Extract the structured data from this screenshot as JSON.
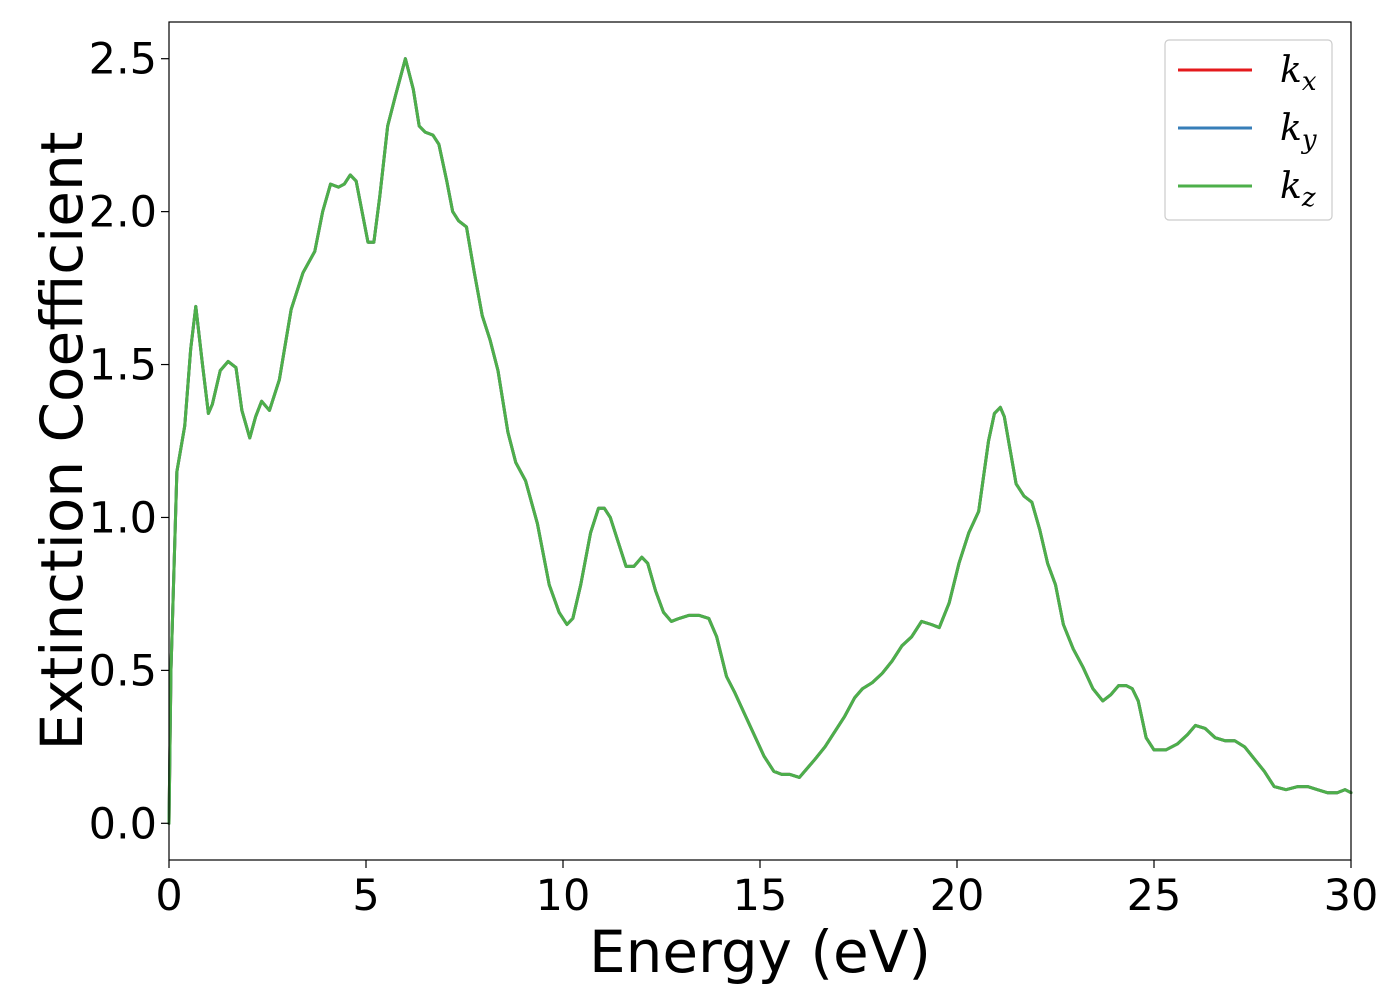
{
  "chart_data": {
    "type": "line",
    "title": "",
    "xlabel": "Energy (eV)",
    "ylabel": "Extinction Coefficient",
    "xlim": [
      0,
      30
    ],
    "ylim": [
      -0.12,
      2.62
    ],
    "xticks": [
      0,
      5,
      10,
      15,
      20,
      25,
      30
    ],
    "xtick_labels": [
      "0",
      "5",
      "10",
      "15",
      "20",
      "25",
      "30"
    ],
    "yticks": [
      0.0,
      0.5,
      1.0,
      1.5,
      2.0,
      2.5
    ],
    "ytick_labels": [
      "0.0",
      "0.5",
      "1.0",
      "1.5",
      "2.0",
      "2.5"
    ],
    "grid": false,
    "legend_position": "top-right",
    "x": [
      0,
      0.05,
      0.2,
      0.4,
      0.55,
      0.68,
      0.85,
      1.0,
      1.1,
      1.3,
      1.5,
      1.7,
      1.85,
      2.05,
      2.2,
      2.35,
      2.55,
      2.8,
      3.1,
      3.4,
      3.7,
      3.9,
      4.1,
      4.3,
      4.45,
      4.6,
      4.75,
      4.9,
      5.05,
      5.2,
      5.35,
      5.55,
      5.75,
      6.0,
      6.2,
      6.35,
      6.5,
      6.7,
      6.85,
      7.05,
      7.2,
      7.35,
      7.55,
      7.75,
      7.95,
      8.15,
      8.35,
      8.6,
      8.8,
      9.05,
      9.35,
      9.65,
      9.9,
      10.1,
      10.25,
      10.45,
      10.7,
      10.9,
      11.05,
      11.2,
      11.4,
      11.6,
      11.8,
      12.0,
      12.15,
      12.35,
      12.55,
      12.75,
      12.95,
      13.2,
      13.45,
      13.7,
      13.9,
      14.15,
      14.35,
      14.6,
      14.85,
      15.1,
      15.35,
      15.55,
      15.75,
      16.0,
      16.2,
      16.4,
      16.65,
      16.9,
      17.15,
      17.4,
      17.6,
      17.85,
      18.1,
      18.35,
      18.6,
      18.85,
      19.1,
      19.35,
      19.55,
      19.8,
      20.05,
      20.3,
      20.55,
      20.8,
      20.95,
      21.1,
      21.2,
      21.35,
      21.5,
      21.7,
      21.9,
      22.1,
      22.3,
      22.5,
      22.7,
      22.95,
      23.2,
      23.45,
      23.7,
      23.9,
      24.1,
      24.3,
      24.45,
      24.6,
      24.8,
      25.0,
      25.3,
      25.6,
      25.85,
      26.05,
      26.3,
      26.55,
      26.8,
      27.05,
      27.3,
      27.55,
      27.8,
      28.05,
      28.35,
      28.65,
      28.9,
      29.15,
      29.4,
      29.65,
      29.85,
      30.0
    ],
    "series": [
      {
        "name": "k_x",
        "color": "#e41a1c",
        "values": [
          0.0,
          0.5,
          1.15,
          1.3,
          1.55,
          1.69,
          1.5,
          1.34,
          1.37,
          1.48,
          1.51,
          1.49,
          1.35,
          1.26,
          1.33,
          1.38,
          1.35,
          1.45,
          1.68,
          1.8,
          1.87,
          2.0,
          2.09,
          2.08,
          2.09,
          2.12,
          2.1,
          2.0,
          1.9,
          1.9,
          2.05,
          2.28,
          2.38,
          2.5,
          2.4,
          2.28,
          2.26,
          2.25,
          2.22,
          2.1,
          2.0,
          1.97,
          1.95,
          1.8,
          1.66,
          1.58,
          1.48,
          1.28,
          1.18,
          1.12,
          0.98,
          0.78,
          0.69,
          0.65,
          0.67,
          0.78,
          0.95,
          1.03,
          1.03,
          1.0,
          0.92,
          0.84,
          0.84,
          0.87,
          0.85,
          0.76,
          0.69,
          0.66,
          0.67,
          0.68,
          0.68,
          0.67,
          0.61,
          0.48,
          0.43,
          0.36,
          0.29,
          0.22,
          0.17,
          0.16,
          0.16,
          0.15,
          0.18,
          0.21,
          0.25,
          0.3,
          0.35,
          0.41,
          0.44,
          0.46,
          0.49,
          0.53,
          0.58,
          0.61,
          0.66,
          0.65,
          0.64,
          0.72,
          0.85,
          0.95,
          1.02,
          1.25,
          1.34,
          1.36,
          1.33,
          1.22,
          1.11,
          1.07,
          1.05,
          0.96,
          0.85,
          0.78,
          0.65,
          0.57,
          0.51,
          0.44,
          0.4,
          0.42,
          0.45,
          0.45,
          0.44,
          0.4,
          0.28,
          0.24,
          0.24,
          0.26,
          0.29,
          0.32,
          0.31,
          0.28,
          0.27,
          0.27,
          0.25,
          0.21,
          0.17,
          0.12,
          0.11,
          0.12,
          0.12,
          0.11,
          0.1,
          0.1,
          0.11,
          0.1
        ]
      },
      {
        "name": "k_y",
        "color": "#377eb8",
        "values": [
          0.0,
          0.5,
          1.15,
          1.3,
          1.55,
          1.69,
          1.5,
          1.34,
          1.37,
          1.48,
          1.51,
          1.49,
          1.35,
          1.26,
          1.33,
          1.38,
          1.35,
          1.45,
          1.68,
          1.8,
          1.87,
          2.0,
          2.09,
          2.08,
          2.09,
          2.12,
          2.1,
          2.0,
          1.9,
          1.9,
          2.05,
          2.28,
          2.38,
          2.5,
          2.4,
          2.28,
          2.26,
          2.25,
          2.22,
          2.1,
          2.0,
          1.97,
          1.95,
          1.8,
          1.66,
          1.58,
          1.48,
          1.28,
          1.18,
          1.12,
          0.98,
          0.78,
          0.69,
          0.65,
          0.67,
          0.78,
          0.95,
          1.03,
          1.03,
          1.0,
          0.92,
          0.84,
          0.84,
          0.87,
          0.85,
          0.76,
          0.69,
          0.66,
          0.67,
          0.68,
          0.68,
          0.67,
          0.61,
          0.48,
          0.43,
          0.36,
          0.29,
          0.22,
          0.17,
          0.16,
          0.16,
          0.15,
          0.18,
          0.21,
          0.25,
          0.3,
          0.35,
          0.41,
          0.44,
          0.46,
          0.49,
          0.53,
          0.58,
          0.61,
          0.66,
          0.65,
          0.64,
          0.72,
          0.85,
          0.95,
          1.02,
          1.25,
          1.34,
          1.36,
          1.33,
          1.22,
          1.11,
          1.07,
          1.05,
          0.96,
          0.85,
          0.78,
          0.65,
          0.57,
          0.51,
          0.44,
          0.4,
          0.42,
          0.45,
          0.45,
          0.44,
          0.4,
          0.28,
          0.24,
          0.24,
          0.26,
          0.29,
          0.32,
          0.31,
          0.28,
          0.27,
          0.27,
          0.25,
          0.21,
          0.17,
          0.12,
          0.11,
          0.12,
          0.12,
          0.11,
          0.1,
          0.1,
          0.11,
          0.1
        ]
      },
      {
        "name": "k_z",
        "color": "#4daf4a",
        "values": [
          0.0,
          0.5,
          1.15,
          1.3,
          1.55,
          1.69,
          1.5,
          1.34,
          1.37,
          1.48,
          1.51,
          1.49,
          1.35,
          1.26,
          1.33,
          1.38,
          1.35,
          1.45,
          1.68,
          1.8,
          1.87,
          2.0,
          2.09,
          2.08,
          2.09,
          2.12,
          2.1,
          2.0,
          1.9,
          1.9,
          2.05,
          2.28,
          2.38,
          2.5,
          2.4,
          2.28,
          2.26,
          2.25,
          2.22,
          2.1,
          2.0,
          1.97,
          1.95,
          1.8,
          1.66,
          1.58,
          1.48,
          1.28,
          1.18,
          1.12,
          0.98,
          0.78,
          0.69,
          0.65,
          0.67,
          0.78,
          0.95,
          1.03,
          1.03,
          1.0,
          0.92,
          0.84,
          0.84,
          0.87,
          0.85,
          0.76,
          0.69,
          0.66,
          0.67,
          0.68,
          0.68,
          0.67,
          0.61,
          0.48,
          0.43,
          0.36,
          0.29,
          0.22,
          0.17,
          0.16,
          0.16,
          0.15,
          0.18,
          0.21,
          0.25,
          0.3,
          0.35,
          0.41,
          0.44,
          0.46,
          0.49,
          0.53,
          0.58,
          0.61,
          0.66,
          0.65,
          0.64,
          0.72,
          0.85,
          0.95,
          1.02,
          1.25,
          1.34,
          1.36,
          1.33,
          1.22,
          1.11,
          1.07,
          1.05,
          0.96,
          0.85,
          0.78,
          0.65,
          0.57,
          0.51,
          0.44,
          0.4,
          0.42,
          0.45,
          0.45,
          0.44,
          0.4,
          0.28,
          0.24,
          0.24,
          0.26,
          0.29,
          0.32,
          0.31,
          0.28,
          0.27,
          0.27,
          0.25,
          0.21,
          0.17,
          0.12,
          0.11,
          0.12,
          0.12,
          0.11,
          0.1,
          0.1,
          0.11,
          0.1
        ]
      }
    ],
    "legend": [
      {
        "base": "k",
        "sub": "x",
        "color": "#e41a1c"
      },
      {
        "base": "k",
        "sub": "y",
        "color": "#377eb8"
      },
      {
        "base": "k",
        "sub": "z",
        "color": "#4daf4a"
      }
    ]
  }
}
